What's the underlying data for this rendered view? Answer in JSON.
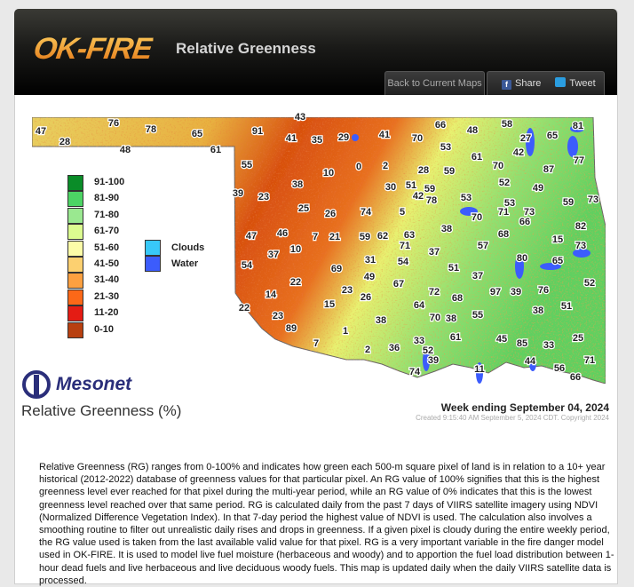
{
  "header": {
    "logo": "OK-FIRE",
    "title": "Relative Greenness",
    "back_label": "Back to Current Maps",
    "share_label": "Share",
    "tweet_label": "Tweet"
  },
  "legend": {
    "items": [
      {
        "label": "91-100",
        "color": "#0a8c28"
      },
      {
        "label": "81-90",
        "color": "#4cd464"
      },
      {
        "label": "71-80",
        "color": "#9ae890"
      },
      {
        "label": "61-70",
        "color": "#dcfc90"
      },
      {
        "label": "51-60",
        "color": "#fcfca8"
      },
      {
        "label": "41-50",
        "color": "#fcd070"
      },
      {
        "label": "31-40",
        "color": "#fca040"
      },
      {
        "label": "21-30",
        "color": "#fc6818"
      },
      {
        "label": "11-20",
        "color": "#e41c14"
      },
      {
        "label": "0-10",
        "color": "#b84010"
      }
    ],
    "other": [
      {
        "label": "Clouds",
        "color": "#38c8f8"
      },
      {
        "label": "Water",
        "color": "#3c5cfc"
      }
    ]
  },
  "map": {
    "county_values": [
      "47",
      "28",
      "76",
      "78",
      "48",
      "65",
      "61",
      "91",
      "43",
      "41",
      "35",
      "29",
      "41",
      "70",
      "66",
      "53",
      "48",
      "58",
      "27",
      "65",
      "81",
      "42",
      "61",
      "70",
      "77",
      "87",
      "0",
      "2",
      "10",
      "28",
      "59",
      "55",
      "38",
      "39",
      "23",
      "25",
      "26",
      "74",
      "30",
      "51",
      "59",
      "42",
      "78",
      "5",
      "53",
      "52",
      "49",
      "53",
      "59",
      "73",
      "70",
      "71",
      "73",
      "66",
      "38",
      "68",
      "82",
      "47",
      "46",
      "7",
      "21",
      "59",
      "62",
      "63",
      "71",
      "37",
      "57",
      "15",
      "73",
      "54",
      "37",
      "10",
      "31",
      "54",
      "51",
      "37",
      "80",
      "65",
      "69",
      "49",
      "67",
      "72",
      "68",
      "97",
      "39",
      "76",
      "52",
      "22",
      "14",
      "23",
      "26",
      "15",
      "64",
      "55",
      "38",
      "51",
      "22",
      "23",
      "38",
      "70",
      "38",
      "89",
      "1",
      "61",
      "45",
      "85",
      "33",
      "25",
      "33",
      "2",
      "36",
      "52",
      "7",
      "39",
      "44",
      "71",
      "74",
      "11",
      "56",
      "66"
    ]
  },
  "footer": {
    "brand": "Mesonet",
    "map_title": "Relative Greenness (%)",
    "week": "Week ending September 04, 2024",
    "created": "Created 9:15:40 AM September 5, 2024 CDT. Copyright 2024",
    "description": "Relative Greenness (RG) ranges from 0-100% and indicates how green each 500-m square pixel of land is in relation to a 10+ year historical (2012-2022) database of greenness values for that particular pixel. An RG value of 100% signifies that this is the highest greenness level ever reached for that pixel during the multi-year period, while an RG value of 0% indicates that this is the lowest greenness level reached over that same period. RG is calculated daily from the past 7 days of VIIRS satellite imagery using NDVI (Normalized Difference Vegetation Index). In that 7-day period the highest value of NDVI is used. The calculation also involves a smoothing routine to filter out unrealistic daily rises and drops in greenness. If a given pixel is cloudy during the entire weekly period, the RG value used is taken from the last available valid value for that pixel. RG is a very important variable in the fire danger model used in OK-FIRE. It is used to model live fuel moisture (herbaceous and woody) and to apportion the fuel load distribution between 1-hour dead fuels and live herbaceous and live deciduous woody fuels. This map is updated daily when the daily VIIRS satellite data is processed."
  }
}
